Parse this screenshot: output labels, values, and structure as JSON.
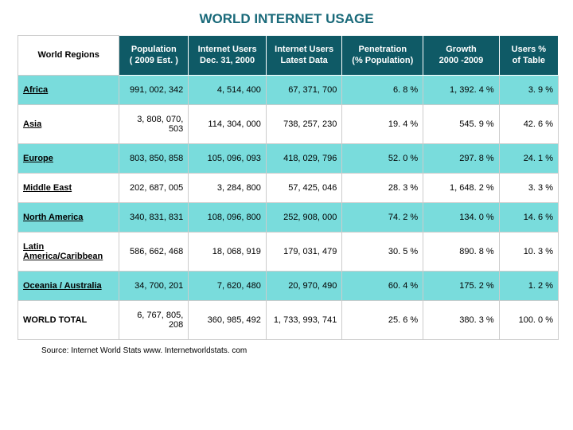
{
  "title": "WORLD INTERNET USAGE",
  "title_color": "#1a6a7a",
  "header_bg": "#0f5a66",
  "header_text_color": "#ffffff",
  "row_alt_bg": "#79dcdc",
  "row_bg": "#ffffff",
  "border_color": "#cccccc",
  "columns": [
    "World Regions",
    "Population\n( 2009 Est. )",
    "Internet Users\nDec. 31, 2000",
    "Internet Users\nLatest Data",
    "Penetration\n(% Population)",
    "Growth\n2000 -2009",
    "Users %\nof Table"
  ],
  "rows": [
    {
      "region": "Africa",
      "underline": true,
      "cells": [
        "991, 002, 342",
        "4, 514, 400",
        "67, 371, 700",
        "6. 8 %",
        "1, 392. 4 %",
        "3. 9 %"
      ]
    },
    {
      "region": "Asia",
      "underline": true,
      "cells": [
        "3, 808, 070, 503",
        "114, 304, 000",
        "738, 257, 230",
        "19. 4 %",
        "545. 9 %",
        "42. 6 %"
      ]
    },
    {
      "region": "Europe",
      "underline": true,
      "cells": [
        "803, 850, 858",
        "105, 096, 093",
        "418, 029, 796",
        "52. 0 %",
        "297. 8 %",
        "24. 1 %"
      ]
    },
    {
      "region": "Middle East",
      "underline": true,
      "cells": [
        "202, 687, 005",
        "3, 284, 800",
        "57, 425, 046",
        "28. 3 %",
        "1, 648. 2 %",
        "3. 3 %"
      ]
    },
    {
      "region": "North America",
      "underline": true,
      "cells": [
        "340, 831, 831",
        "108, 096, 800",
        "252, 908, 000",
        "74. 2 %",
        "134. 0 %",
        "14. 6 %"
      ]
    },
    {
      "region": "Latin America/Caribbean",
      "underline": true,
      "cells": [
        "586, 662, 468",
        "18, 068, 919",
        "179, 031, 479",
        "30. 5 %",
        "890. 8 %",
        "10. 3 %"
      ]
    },
    {
      "region": "Oceania / Australia",
      "underline": true,
      "cells": [
        "34, 700, 201",
        "7, 620, 480",
        "20, 970, 490",
        "60. 4 %",
        "175. 2 %",
        "1. 2 %"
      ]
    },
    {
      "region": "WORLD TOTAL",
      "underline": false,
      "cells": [
        "6, 767, 805, 208",
        "360, 985, 492",
        "1, 733, 993, 741",
        "25. 6 %",
        "380. 3 %",
        "100. 0 %"
      ]
    }
  ],
  "source": "Source: Internet World Stats www. Internetworldstats. com"
}
